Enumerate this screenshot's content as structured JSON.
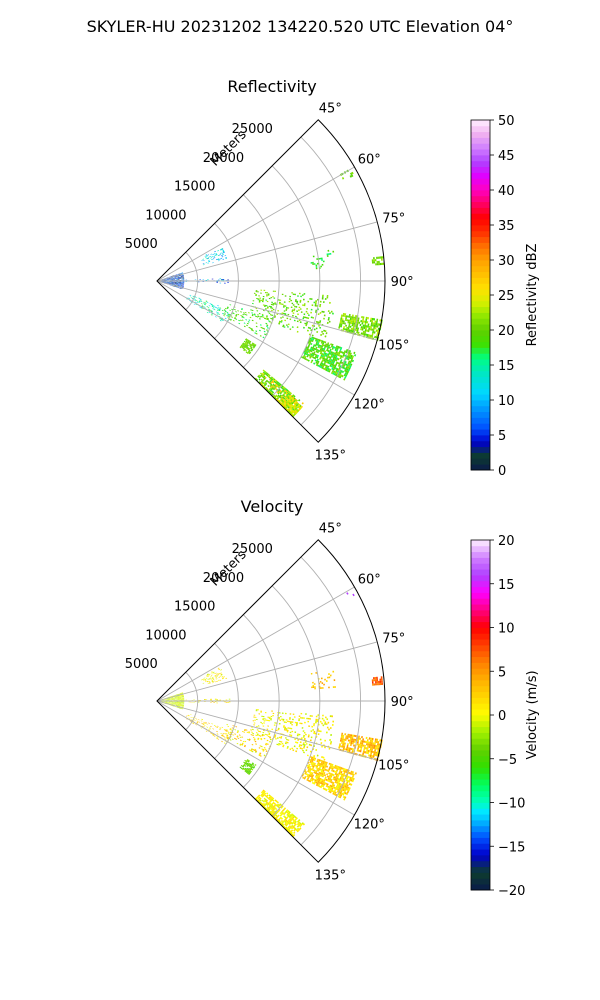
{
  "figure": {
    "suptitle": "SKYLER-HU  20231202  134220.520 UTC Elevation 04°"
  },
  "colors": {
    "grid": "#b0b0b0",
    "axis": "#000000",
    "background": "#ffffff"
  },
  "chart_data": [
    {
      "type": "heatmap",
      "title": "Reflectivity",
      "projection": "polar-sector",
      "radial_label": "Meters",
      "radial_ticks": [
        5000,
        10000,
        15000,
        20000,
        25000
      ],
      "radial_tick_labels": [
        "5000",
        "10000",
        "15000",
        "20000",
        "25000"
      ],
      "r_max": 28000,
      "azimuth_range_deg": [
        45,
        135
      ],
      "angular_ticks": [
        45,
        60,
        75,
        90,
        105,
        120,
        135
      ],
      "angular_tick_labels": [
        "45°",
        "60°",
        "75°",
        "90°",
        "105°",
        "120°",
        "135°"
      ],
      "grid": true,
      "colorbar": {
        "label": "Reflectivity dBZ",
        "vmin": 0,
        "vmax": 50,
        "ticks": [
          0,
          5,
          10,
          15,
          20,
          25,
          30,
          35,
          40,
          45,
          50
        ],
        "tick_labels": [
          "0",
          "5",
          "10",
          "15",
          "20",
          "25",
          "30",
          "35",
          "40",
          "45",
          "50"
        ],
        "stops": [
          [
            0,
            "#0a1a4a"
          ],
          [
            2,
            "#0d3d2d"
          ],
          [
            4,
            "#0000cc"
          ],
          [
            6,
            "#0050ff"
          ],
          [
            9,
            "#00a0ff"
          ],
          [
            11,
            "#00d8ff"
          ],
          [
            14,
            "#00e8c0"
          ],
          [
            16,
            "#00ff80"
          ],
          [
            18,
            "#40e000"
          ],
          [
            20,
            "#60d000"
          ],
          [
            22,
            "#90e800"
          ],
          [
            24,
            "#d8f000"
          ],
          [
            26,
            "#ffe000"
          ],
          [
            28,
            "#ffc000"
          ],
          [
            30,
            "#ffa000"
          ],
          [
            32,
            "#ff7000"
          ],
          [
            34,
            "#ff3000"
          ],
          [
            36,
            "#ff0000"
          ],
          [
            38,
            "#ff0060"
          ],
          [
            40,
            "#ff00c0"
          ],
          [
            42,
            "#e000ff"
          ],
          [
            44,
            "#b040ff"
          ],
          [
            46,
            "#d080ff"
          ],
          [
            48,
            "#f0b0f0"
          ],
          [
            50,
            "#fff0ff"
          ]
        ]
      },
      "echo_regions": [
        {
          "az": [
            130,
            137
          ],
          "r": [
            17000,
            23500
          ],
          "value": 20,
          "spread": 3,
          "hot": 26
        },
        {
          "az": [
            131,
            136
          ],
          "r": [
            21000,
            23500
          ],
          "value": 24,
          "spread": 3
        },
        {
          "az": [
            123,
            129
          ],
          "r": [
            13000,
            14500
          ],
          "value": 20,
          "spread": 2
        },
        {
          "az": [
            100,
            105
          ],
          "r": [
            23000,
            28000
          ],
          "value": 21,
          "spread": 3
        },
        {
          "az": [
            110,
            118
          ],
          "r": [
            20000,
            26000
          ],
          "value": 19,
          "spread": 3
        },
        {
          "az": [
            95,
            110
          ],
          "r": [
            12000,
            22000
          ],
          "value": 20,
          "spread": 3,
          "sparse": true
        },
        {
          "az": [
            108,
            118
          ],
          "r": [
            9000,
            15000
          ],
          "value": 19,
          "spread": 3,
          "sparse": true
        },
        {
          "az": [
            112,
            122
          ],
          "r": [
            4000,
            10000
          ],
          "value": 14,
          "spread": 4,
          "sparse": true
        },
        {
          "az": [
            62,
            72
          ],
          "r": [
            6000,
            9000
          ],
          "value": 11,
          "spread": 4,
          "sparse": true
        },
        {
          "az": [
            84,
            86
          ],
          "r": [
            26500,
            28000
          ],
          "value": 21,
          "spread": 2
        },
        {
          "az": [
            80,
            86
          ],
          "r": [
            19000,
            22000
          ],
          "value": 18,
          "spread": 2,
          "sparse": true
        },
        {
          "az": [
            60,
            62
          ],
          "r": [
            26000,
            27500
          ],
          "value": 20,
          "spread": 2,
          "sparse": true
        },
        {
          "az": [
            72,
            108
          ],
          "r": [
            500,
            3200
          ],
          "value": 5,
          "spread": 4
        },
        {
          "az": [
            88,
            92
          ],
          "r": [
            3500,
            9000
          ],
          "value": 8,
          "spread": 5,
          "sparse": true
        }
      ]
    },
    {
      "type": "heatmap",
      "title": "Velocity",
      "projection": "polar-sector",
      "radial_label": "Meters",
      "radial_ticks": [
        5000,
        10000,
        15000,
        20000,
        25000
      ],
      "radial_tick_labels": [
        "5000",
        "10000",
        "15000",
        "20000",
        "25000"
      ],
      "r_max": 28000,
      "azimuth_range_deg": [
        45,
        135
      ],
      "angular_ticks": [
        45,
        60,
        75,
        90,
        105,
        120,
        135
      ],
      "angular_tick_labels": [
        "45°",
        "60°",
        "75°",
        "90°",
        "105°",
        "120°",
        "135°"
      ],
      "grid": true,
      "colorbar": {
        "label": "Velocity (m/s)",
        "vmin": -20,
        "vmax": 20,
        "ticks": [
          -20,
          -15,
          -10,
          -5,
          0,
          5,
          10,
          15,
          20
        ],
        "tick_labels": [
          "−20",
          "−15",
          "−10",
          "−5",
          "0",
          "5",
          "10",
          "15",
          "20"
        ],
        "stops": [
          [
            -20,
            "#0a1a4a"
          ],
          [
            -18,
            "#0d3d2d"
          ],
          [
            -16,
            "#0000cc"
          ],
          [
            -14,
            "#0050ff"
          ],
          [
            -12,
            "#00c0ff"
          ],
          [
            -11,
            "#00e8ff"
          ],
          [
            -10,
            "#00ffc0"
          ],
          [
            -8,
            "#00ff60"
          ],
          [
            -6,
            "#30e000"
          ],
          [
            -4,
            "#60d000"
          ],
          [
            -2,
            "#a0f000"
          ],
          [
            -0.5,
            "#e0f800"
          ],
          [
            0,
            "#ffff00"
          ],
          [
            2,
            "#ffd800"
          ],
          [
            4,
            "#ffb000"
          ],
          [
            6,
            "#ff8000"
          ],
          [
            8,
            "#ff4000"
          ],
          [
            10,
            "#ff0000"
          ],
          [
            12,
            "#ff0080"
          ],
          [
            14,
            "#ff00ff"
          ],
          [
            16,
            "#b040ff"
          ],
          [
            18,
            "#d080ff"
          ],
          [
            20,
            "#fff0ff"
          ]
        ]
      },
      "echo_regions": [
        {
          "az": [
            130,
            137
          ],
          "r": [
            17000,
            23500
          ],
          "value": 0.5,
          "spread": 1.5
        },
        {
          "az": [
            100,
            105
          ],
          "r": [
            23000,
            28000
          ],
          "value": 3,
          "spread": 2.5
        },
        {
          "az": [
            110,
            118
          ],
          "r": [
            20000,
            26000
          ],
          "value": 2,
          "spread": 2.5
        },
        {
          "az": [
            123,
            129
          ],
          "r": [
            13000,
            14500
          ],
          "value": -4,
          "spread": 1.5
        },
        {
          "az": [
            95,
            110
          ],
          "r": [
            12000,
            22000
          ],
          "value": 0.5,
          "spread": 2,
          "sparse": true
        },
        {
          "az": [
            108,
            118
          ],
          "r": [
            9000,
            15000
          ],
          "value": 1.5,
          "spread": 3,
          "sparse": true
        },
        {
          "az": [
            112,
            122
          ],
          "r": [
            4000,
            10000
          ],
          "value": 2,
          "spread": 2.5,
          "sparse": true
        },
        {
          "az": [
            62,
            72
          ],
          "r": [
            6000,
            9000
          ],
          "value": 0.5,
          "spread": 2,
          "sparse": true
        },
        {
          "az": [
            84,
            86
          ],
          "r": [
            26500,
            28000
          ],
          "value": 7,
          "spread": 2
        },
        {
          "az": [
            80,
            86
          ],
          "r": [
            19000,
            22000
          ],
          "value": 3,
          "spread": 2,
          "sparse": true
        },
        {
          "az": [
            60,
            62
          ],
          "r": [
            26000,
            27500
          ],
          "value": 15,
          "spread": 1,
          "sparse": true
        },
        {
          "az": [
            72,
            108
          ],
          "r": [
            500,
            3200
          ],
          "value": -1,
          "spread": 1.5
        },
        {
          "az": [
            88,
            92
          ],
          "r": [
            3500,
            9000
          ],
          "value": 1,
          "spread": 2.5,
          "sparse": true
        }
      ]
    }
  ]
}
